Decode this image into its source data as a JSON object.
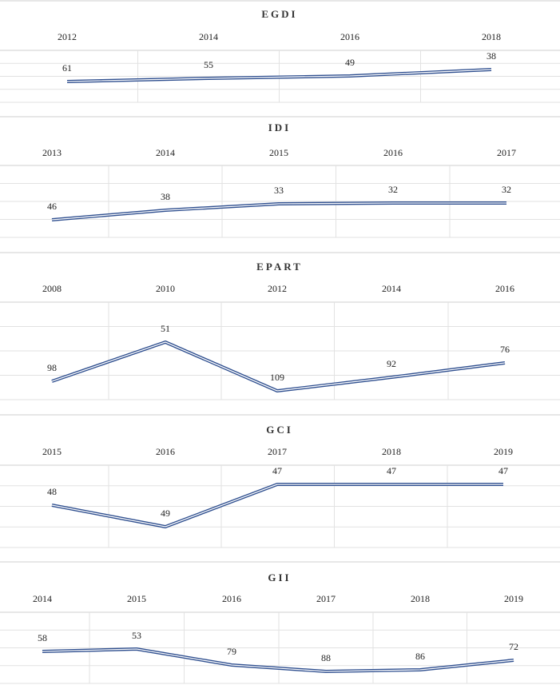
{
  "chart_data": [
    {
      "type": "line",
      "title": "EGDI",
      "categories": [
        "2012",
        "2014",
        "2016",
        "2018"
      ],
      "values": [
        61,
        55,
        49,
        38
      ],
      "inverted": true,
      "line_color": "#2f4f8f"
    },
    {
      "type": "line",
      "title": "IDI",
      "categories": [
        "2013",
        "2014",
        "2015",
        "2016",
        "2017"
      ],
      "values": [
        46,
        38,
        33,
        32,
        32
      ],
      "inverted": true,
      "line_color": "#2f4f8f"
    },
    {
      "type": "line",
      "title": "EPART",
      "categories": [
        "2008",
        "2010",
        "2012",
        "2014",
        "2016"
      ],
      "values": [
        98,
        51,
        109,
        92,
        76
      ],
      "inverted": true,
      "line_color": "#2f4f8f"
    },
    {
      "type": "line",
      "title": "GCI",
      "categories": [
        "2015",
        "2016",
        "2017",
        "2018",
        "2019"
      ],
      "values": [
        48,
        49,
        47,
        47,
        47
      ],
      "inverted": true,
      "line_color": "#2f4f8f"
    },
    {
      "type": "line",
      "title": "GII",
      "categories": [
        "2014",
        "2015",
        "2016",
        "2017",
        "2018",
        "2019"
      ],
      "values": [
        58,
        53,
        79,
        88,
        86,
        72
      ],
      "inverted": true,
      "line_color": "#2f4f8f"
    }
  ]
}
